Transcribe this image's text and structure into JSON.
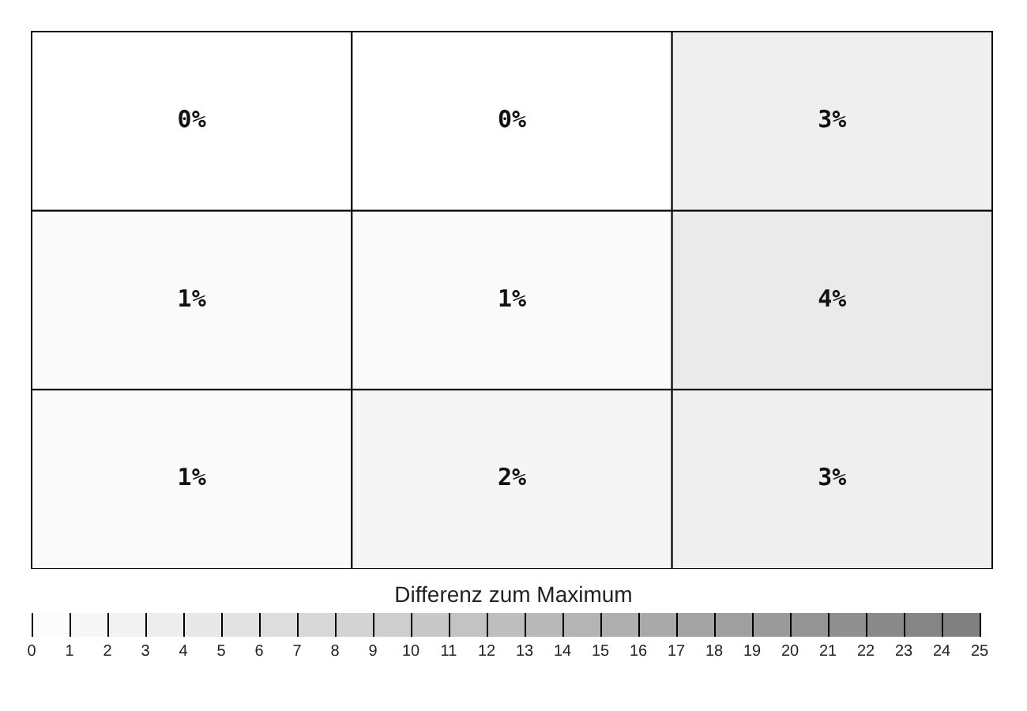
{
  "chart_data": {
    "type": "heatmap",
    "categories": [
      null,
      null,
      null
    ],
    "y_categories": [
      null,
      null,
      null
    ],
    "cells": [
      [
        0,
        0,
        3
      ],
      [
        1,
        1,
        4
      ],
      [
        1,
        2,
        3
      ]
    ],
    "cell_labels": [
      [
        "0%",
        "0%",
        "3%"
      ],
      [
        "1%",
        "1%",
        "4%"
      ],
      [
        "1%",
        "2%",
        "3%"
      ]
    ],
    "clabel": "Differenz zum Maximum",
    "clim": [
      0,
      25
    ],
    "cticks": [
      0,
      1,
      2,
      3,
      4,
      5,
      6,
      7,
      8,
      9,
      10,
      11,
      12,
      13,
      14,
      15,
      16,
      17,
      18,
      19,
      20,
      21,
      22,
      23,
      24,
      25
    ],
    "legend": false
  }
}
